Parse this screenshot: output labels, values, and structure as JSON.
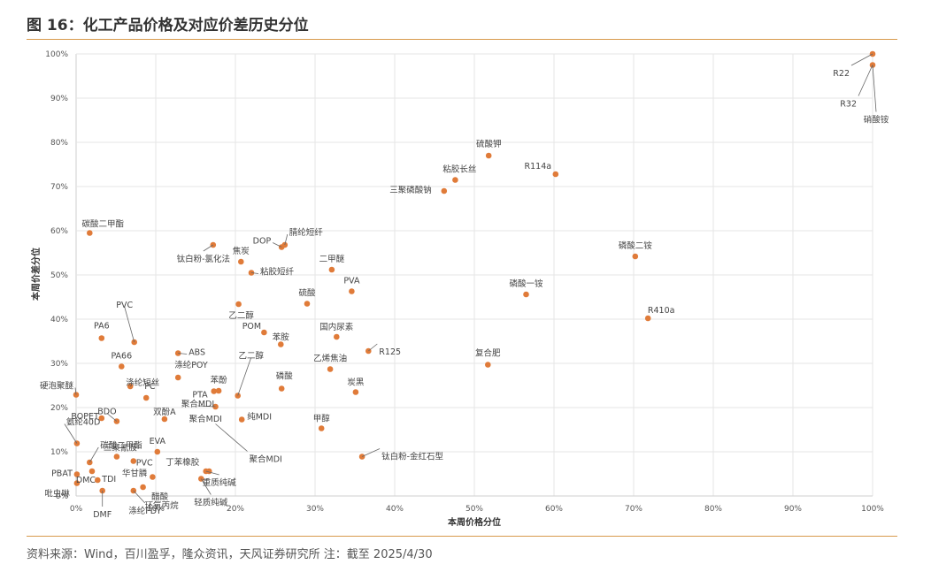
{
  "title": "图 16：化工产品价格及对应价差历史分位",
  "source": "资料来源：Wind，百川盈孚，隆众资讯，天风证券研究所 注：截至 2025/4/30",
  "chart_data": {
    "type": "scatter",
    "xlabel": "本周价格分位",
    "ylabel": "本周价差分位",
    "xlim": [
      0,
      100
    ],
    "ylim": [
      0,
      100
    ],
    "x_ticks": [
      "0%",
      "10%",
      "20%",
      "30%",
      "40%",
      "50%",
      "60%",
      "70%",
      "80%",
      "90%",
      "100%"
    ],
    "y_ticks": [
      "0%",
      "10%",
      "20%",
      "30%",
      "40%",
      "50%",
      "60%",
      "70%",
      "80%",
      "90%",
      "100%"
    ],
    "grid": true,
    "points": [
      {
        "label": "R22",
        "x": 100,
        "y": 100
      },
      {
        "label": "R32",
        "x": 100,
        "y": 97.5
      },
      {
        "label": "硝酸铵",
        "x": 100,
        "y": 97.5
      },
      {
        "label": "硫酸钾",
        "x": 51.8,
        "y": 77
      },
      {
        "label": "R114a",
        "x": 60.2,
        "y": 72.8
      },
      {
        "label": "粘胶长丝",
        "x": 47.6,
        "y": 71.5
      },
      {
        "label": "三聚磷酸钠",
        "x": 46.2,
        "y": 69
      },
      {
        "label": "碳酸二甲酯",
        "x": 1.7,
        "y": 59.5
      },
      {
        "label": "DOP",
        "x": 25.8,
        "y": 56.3
      },
      {
        "label": "腈纶短纤",
        "x": 26.2,
        "y": 56.8
      },
      {
        "label": "钛白粉-氯化法",
        "x": 17.2,
        "y": 56.8
      },
      {
        "label": "焦炭",
        "x": 20.7,
        "y": 53
      },
      {
        "label": "粘胶短纤",
        "x": 22,
        "y": 50.5
      },
      {
        "label": "二甲醚",
        "x": 32.1,
        "y": 51.2
      },
      {
        "label": "磷酸二铵",
        "x": 70.2,
        "y": 54.2
      },
      {
        "label": "PVA",
        "x": 34.6,
        "y": 46.3
      },
      {
        "label": "磷酸一铵",
        "x": 56.5,
        "y": 45.6
      },
      {
        "label": "硫酸",
        "x": 29,
        "y": 43.5
      },
      {
        "label": "R410a",
        "x": 71.8,
        "y": 40.2
      },
      {
        "label": "乙二醇",
        "x": 20.4,
        "y": 43.4
      },
      {
        "label": "POM",
        "x": 23.6,
        "y": 37
      },
      {
        "label": "苯胺",
        "x": 25.7,
        "y": 34.3
      },
      {
        "label": "国内尿素",
        "x": 32.7,
        "y": 36
      },
      {
        "label": "PVC",
        "x": 7.3,
        "y": 34.8
      },
      {
        "label": "PA6",
        "x": 3.2,
        "y": 35.7
      },
      {
        "label": "ABS",
        "x": 12.8,
        "y": 32.3
      },
      {
        "label": "R125",
        "x": 36.7,
        "y": 32.8
      },
      {
        "label": "PA66",
        "x": 5.7,
        "y": 29.3
      },
      {
        "label": "复合肥",
        "x": 51.7,
        "y": 29.7
      },
      {
        "label": "涤纶POY",
        "x": 12.8,
        "y": 26.8
      },
      {
        "label": "乙烯焦油",
        "x": 31.9,
        "y": 28.7
      },
      {
        "label": "涤纶短丝",
        "x": 6.8,
        "y": 24.8
      },
      {
        "label": "苯酚",
        "x": 17.9,
        "y": 23.8
      },
      {
        "label": "PTA",
        "x": 17.3,
        "y": 23.7
      },
      {
        "label": "磷酸",
        "x": 25.8,
        "y": 24.3
      },
      {
        "label": "炭黑",
        "x": 35.1,
        "y": 23.5
      },
      {
        "label": "硬泡聚醚",
        "x": 0,
        "y": 22.9
      },
      {
        "label": "PC",
        "x": 8.8,
        "y": 22.2
      },
      {
        "label": "乙二醇",
        "x": 20.3,
        "y": 22.7
      },
      {
        "label": "BOPET",
        "x": 3.2,
        "y": 17.6
      },
      {
        "label": "BDO",
        "x": 5.1,
        "y": 16.9
      },
      {
        "label": "双酚A",
        "x": 11.1,
        "y": 17.4
      },
      {
        "label": "聚合MDI",
        "x": 17.5,
        "y": 20.2
      },
      {
        "label": "纯MDI",
        "x": 20.8,
        "y": 17.3
      },
      {
        "label": "甲醇",
        "x": 30.8,
        "y": 15.3
      },
      {
        "label": "聚合MDI",
        "x": 17.5,
        "y": 16.3
      },
      {
        "label": "聚合MDI",
        "x": 16.7,
        "y": 16.6
      },
      {
        "label": "氨纶40D",
        "x": 0.1,
        "y": 11.9
      },
      {
        "label": "碳酸二甲酯",
        "x": 1.7,
        "y": 7.6
      },
      {
        "label": "EVA",
        "x": 10.2,
        "y": 10
      },
      {
        "label": "三聚氰胺",
        "x": 5.1,
        "y": 8.9
      },
      {
        "label": "钛白粉-金红石型",
        "x": 35.9,
        "y": 8.9
      },
      {
        "label": "PBAT",
        "x": 0.1,
        "y": 4.9
      },
      {
        "label": "PVC",
        "x": 7.2,
        "y": 7.9
      },
      {
        "label": "丁苯橡胶",
        "x": 16.7,
        "y": 5.6
      },
      {
        "label": "TDI",
        "x": 2.7,
        "y": 3.6
      },
      {
        "label": "华甘膦",
        "x": 9.6,
        "y": 4.3
      },
      {
        "label": "醋酸",
        "x": 8.4,
        "y": 2
      },
      {
        "label": "DMC",
        "x": 2,
        "y": 5.6
      },
      {
        "label": "DMF",
        "x": 3.3,
        "y": 1.2
      },
      {
        "label": "吡虫啉",
        "x": 0.1,
        "y": 2.9
      },
      {
        "label": "涤纶FDY",
        "x": 7.2,
        "y": 1.2
      },
      {
        "label": "环氧丙烷",
        "x": 8.4,
        "y": 2
      },
      {
        "label": "轻质纯碱",
        "x": 15.7,
        "y": 3.9
      },
      {
        "label": "重质纯碱",
        "x": 16.3,
        "y": 5.6
      }
    ]
  }
}
